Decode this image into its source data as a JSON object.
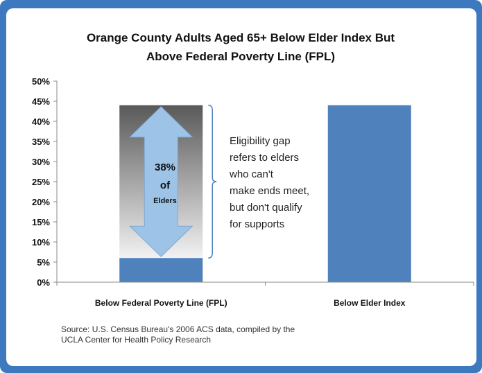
{
  "chart_data": {
    "type": "bar",
    "title": "Orange County Adults Aged 65+ Below Elder Index But Above  Federal Poverty Line (FPL)",
    "title_lines": [
      "Orange County Adults Aged 65+ Below Elder Index But",
      "Above  Federal Poverty Line (FPL)"
    ],
    "categories": [
      "Below Federal Poverty Line (FPL)",
      "Below Elder Index"
    ],
    "values": [
      6,
      44
    ],
    "ylim": [
      0,
      50
    ],
    "yticks": [
      0,
      5,
      10,
      15,
      20,
      25,
      30,
      35,
      40,
      45,
      50
    ],
    "ytick_labels": [
      "0%",
      "5%",
      "10%",
      "15%",
      "20%",
      "25%",
      "30%",
      "35%",
      "40%",
      "45%",
      "50%"
    ],
    "grid": false,
    "bar_color": "#4f81bd",
    "gap_fill_top": "#595959",
    "gap_fill_bottom": "#f2f2f2",
    "gap_range": [
      6,
      44
    ],
    "arrow_color": "#9dc3e6",
    "arrow_label_lines": [
      "38%",
      "of",
      "Elders"
    ],
    "annotation_lines": [
      "Eligibility gap",
      "refers to elders",
      "who can't",
      "make ends meet,",
      "but don't qualify",
      "for supports"
    ],
    "source_lines": [
      "Source:  U.S. Census Bureau's 2006 ACS data, compiled by the",
      "UCLA Center for Health Policy Research"
    ]
  },
  "colors": {
    "frame": "#3c79bf",
    "panel": "#ffffff",
    "axis": "#888888",
    "bracket": "#4f81bd"
  }
}
